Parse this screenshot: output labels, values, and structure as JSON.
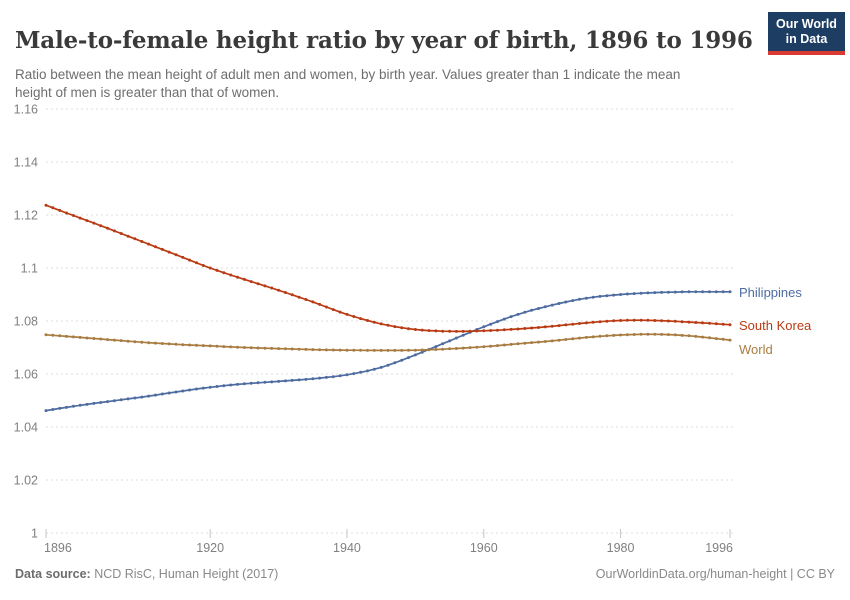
{
  "header": {
    "title": "Male-to-female height ratio by year of birth, 1896 to 1996",
    "subtitle": "Ratio between the mean height of adult men and women, by birth year. Values greater than 1 indicate the mean height of men is greater than that of women."
  },
  "logo": {
    "line1": "Our World",
    "line2": "in Data",
    "bg_color": "#1D3D63",
    "stripe_color": "#D93A32"
  },
  "chart_data": {
    "type": "line",
    "title": "Male-to-female height ratio by year of birth, 1896 to 1996",
    "xlim": [
      1896,
      1996
    ],
    "ylim": [
      1,
      1.16
    ],
    "x_ticks": [
      1896,
      1920,
      1940,
      1960,
      1980,
      1996
    ],
    "y_ticks": [
      1,
      1.02,
      1.04,
      1.06,
      1.08,
      1.1,
      1.12,
      1.14,
      1.16
    ],
    "grid": "horizontal-dashed",
    "marker": "dot-every-year",
    "legend_position": "labels-at-line-end",
    "axis_label_color": "#808080",
    "grid_color": "#dedede",
    "series": [
      {
        "name": "Philippines",
        "color": "#4E6CA0",
        "points": [
          [
            1896,
            1.0462
          ],
          [
            1900,
            1.0478
          ],
          [
            1905,
            1.0496
          ],
          [
            1910,
            1.0513
          ],
          [
            1915,
            1.0532
          ],
          [
            1920,
            1.055
          ],
          [
            1925,
            1.0563
          ],
          [
            1930,
            1.0572
          ],
          [
            1935,
            1.0582
          ],
          [
            1940,
            1.0597
          ],
          [
            1945,
            1.0625
          ],
          [
            1950,
            1.0672
          ],
          [
            1955,
            1.0725
          ],
          [
            1960,
            1.0778
          ],
          [
            1965,
            1.0825
          ],
          [
            1970,
            1.086
          ],
          [
            1975,
            1.0886
          ],
          [
            1980,
            1.09
          ],
          [
            1985,
            1.0907
          ],
          [
            1990,
            1.091
          ],
          [
            1996,
            1.091
          ]
        ]
      },
      {
        "name": "South Korea",
        "color": "#B93B13",
        "points": [
          [
            1896,
            1.1237
          ],
          [
            1900,
            1.1198
          ],
          [
            1905,
            1.115
          ],
          [
            1910,
            1.11
          ],
          [
            1915,
            1.105
          ],
          [
            1920,
            1.1
          ],
          [
            1925,
            1.0957
          ],
          [
            1930,
            1.0916
          ],
          [
            1935,
            1.0872
          ],
          [
            1940,
            1.0825
          ],
          [
            1945,
            1.0789
          ],
          [
            1950,
            1.0768
          ],
          [
            1955,
            1.0761
          ],
          [
            1960,
            1.0763
          ],
          [
            1965,
            1.077
          ],
          [
            1970,
            1.078
          ],
          [
            1975,
            1.0793
          ],
          [
            1980,
            1.0802
          ],
          [
            1985,
            1.0802
          ],
          [
            1990,
            1.0796
          ],
          [
            1996,
            1.0786
          ]
        ]
      },
      {
        "name": "World",
        "color": "#A87C41",
        "points": [
          [
            1896,
            1.0748
          ],
          [
            1900,
            1.074
          ],
          [
            1905,
            1.073
          ],
          [
            1910,
            1.072
          ],
          [
            1915,
            1.0712
          ],
          [
            1920,
            1.0706
          ],
          [
            1925,
            1.07
          ],
          [
            1930,
            1.0696
          ],
          [
            1935,
            1.0692
          ],
          [
            1940,
            1.069
          ],
          [
            1945,
            1.0689
          ],
          [
            1950,
            1.069
          ],
          [
            1955,
            1.0695
          ],
          [
            1960,
            1.0703
          ],
          [
            1965,
            1.0714
          ],
          [
            1970,
            1.0725
          ],
          [
            1975,
            1.0738
          ],
          [
            1980,
            1.0747
          ],
          [
            1985,
            1.075
          ],
          [
            1990,
            1.0744
          ],
          [
            1996,
            1.0728
          ]
        ]
      }
    ]
  },
  "footer": {
    "datasource_label": "Data source:",
    "datasource_value": "NCD RisC, Human Height (2017)",
    "credit": "OurWorldinData.org/human-height | CC BY"
  }
}
